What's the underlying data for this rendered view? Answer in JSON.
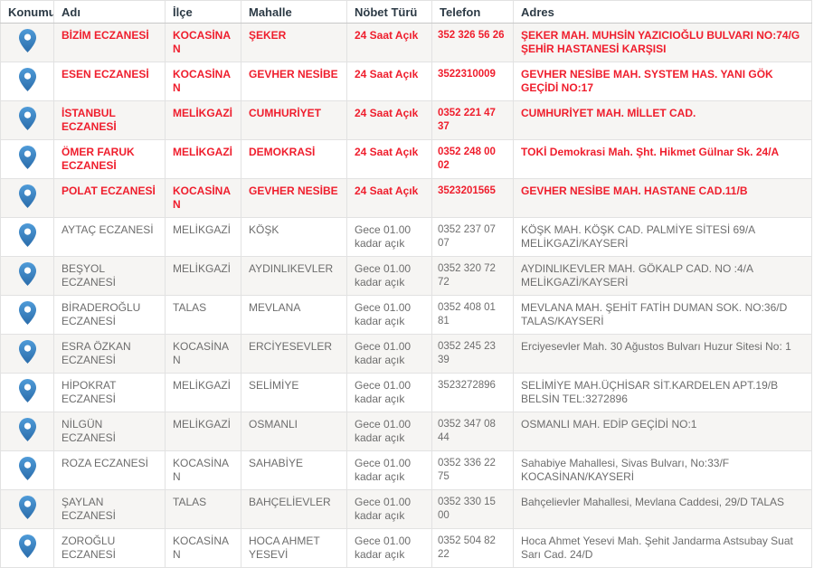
{
  "table": {
    "columns": [
      {
        "label": "Konumu"
      },
      {
        "label": "Adı"
      },
      {
        "label": "İlçe"
      },
      {
        "label": "Mahalle"
      },
      {
        "label": "Nöbet Türü"
      },
      {
        "label": "Telefon"
      },
      {
        "label": "Adres"
      }
    ],
    "colors": {
      "red": "#ef1e2d",
      "gray": "#6d6d6d",
      "header_text": "#2c3a45",
      "border": "#e2e2e2",
      "stripe": "#f6f5f3",
      "pin_blue_top": "#4f9bd8",
      "pin_blue_bottom": "#2b6dab"
    },
    "rows": [
      {
        "name": "BİZİM ECZANESİ",
        "district": "KOCASİNAN",
        "neighborhood": "ŞEKER",
        "duty": "24 Saat Açık",
        "phone": "352 326 56 26",
        "address": "ŞEKER MAH. MUHSİN YAZICIOĞLU BULVARI NO:74/G ŞEHİR HASTANESİ KARŞISI",
        "open24h": true
      },
      {
        "name": "ESEN ECZANESİ",
        "district": "KOCASİNAN",
        "neighborhood": "GEVHER NESİBE",
        "duty": "24 Saat Açık",
        "phone": "3522310009",
        "address": "GEVHER NESİBE MAH. SYSTEM HAS. YANI GÖK GEÇİDİ NO:17",
        "open24h": true
      },
      {
        "name": "İSTANBUL ECZANESİ",
        "district": "MELİKGAZİ",
        "neighborhood": "CUMHURİYET",
        "duty": "24 Saat Açık",
        "phone": "0352 221 47 37",
        "address": "CUMHURİYET MAH. MİLLET CAD.",
        "open24h": true
      },
      {
        "name": "ÖMER FARUK ECZANESİ",
        "district": "MELİKGAZİ",
        "neighborhood": "DEMOKRASİ",
        "duty": "24 Saat Açık",
        "phone": "0352 248 00 02",
        "address": "TOKİ Demokrasi Mah. Şht. Hikmet Gülnar Sk. 24/A",
        "open24h": true
      },
      {
        "name": "POLAT ECZANESİ",
        "district": "KOCASİNAN",
        "neighborhood": "GEVHER NESİBE",
        "duty": "24 Saat Açık",
        "phone": "3523201565",
        "address": "GEVHER NESİBE MAH. HASTANE CAD.11/B",
        "open24h": true
      },
      {
        "name": "AYTAÇ ECZANESİ",
        "district": "MELİKGAZİ",
        "neighborhood": "KÖŞK",
        "duty": "Gece 01.00 kadar açık",
        "phone": "0352 237 07 07",
        "address": "KÖŞK MAH. KÖŞK CAD. PALMİYE SİTESİ 69/A MELİKGAZİ/KAYSERİ",
        "open24h": false
      },
      {
        "name": "BEŞYOL ECZANESİ",
        "district": "MELİKGAZİ",
        "neighborhood": "AYDINLIKEVLER",
        "duty": "Gece 01.00 kadar açık",
        "phone": "0352 320 72 72",
        "address": "AYDINLIKEVLER MAH. GÖKALP CAD. NO :4/A MELİKGAZİ/KAYSERİ",
        "open24h": false
      },
      {
        "name": "BİRADEROĞLU ECZANESİ",
        "district": "TALAS",
        "neighborhood": "MEVLANA",
        "duty": "Gece 01.00 kadar açık",
        "phone": "0352 408 01 81",
        "address": "MEVLANA MAH. ŞEHİT FATİH DUMAN SOK. NO:36/D TALAS/KAYSERİ",
        "open24h": false
      },
      {
        "name": "ESRA ÖZKAN ECZANESİ",
        "district": "KOCASİNAN",
        "neighborhood": "ERCİYESEVLER",
        "duty": "Gece 01.00 kadar açık",
        "phone": "0352 245 23 39",
        "address": "Erciyesevler Mah. 30 Ağustos Bulvarı Huzur Sitesi No: 1",
        "open24h": false
      },
      {
        "name": "HİPOKRAT ECZANESİ",
        "district": "MELİKGAZİ",
        "neighborhood": "SELİMİYE",
        "duty": "Gece 01.00 kadar açık",
        "phone": "3523272896",
        "address": "SELİMİYE MAH.ÜÇHİSAR SİT.KARDELEN APT.19/B BELSİN TEL:3272896",
        "open24h": false
      },
      {
        "name": "NİLGÜN ECZANESİ",
        "district": "MELİKGAZİ",
        "neighborhood": "OSMANLI",
        "duty": "Gece 01.00 kadar açık",
        "phone": "0352 347 08 44",
        "address": "OSMANLI MAH. EDİP GEÇİDİ NO:1",
        "open24h": false
      },
      {
        "name": "ROZA ECZANESİ",
        "district": "KOCASİNAN",
        "neighborhood": "SAHABİYE",
        "duty": "Gece 01.00 kadar açık",
        "phone": "0352 336 22 75",
        "address": "Sahabiye Mahallesi, Sivas Bulvarı, No:33/F KOCASİNAN/KAYSERİ",
        "open24h": false
      },
      {
        "name": "ŞAYLAN ECZANESİ",
        "district": "TALAS",
        "neighborhood": "BAHÇELİEVLER",
        "duty": "Gece 01.00 kadar açık",
        "phone": "0352 330 15 00",
        "address": "Bahçelievler Mahallesi, Mevlana Caddesi, 29/D TALAS",
        "open24h": false
      },
      {
        "name": "ZOROĞLU ECZANESİ",
        "district": "KOCASİNAN",
        "neighborhood": "HOCA AHMET YESEVİ",
        "duty": "Gece 01.00 kadar açık",
        "phone": "0352 504 82 22",
        "address": "Hoca Ahmet Yesevi Mah. Şehit Jandarma Astsubay Suat Sarı Cad. 24/D",
        "open24h": false
      }
    ]
  }
}
